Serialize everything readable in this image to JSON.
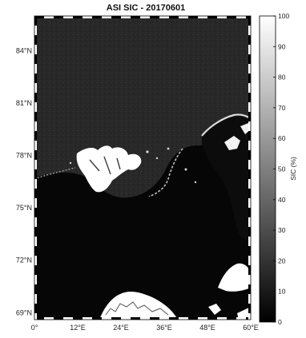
{
  "title": "ASI SIC - 20170601",
  "map": {
    "lat_labels": [
      {
        "value": 84,
        "text": "84°N"
      },
      {
        "value": 81,
        "text": "81°N"
      },
      {
        "value": 78,
        "text": "78°N"
      },
      {
        "value": 75,
        "text": "75°N"
      },
      {
        "value": 72,
        "text": "72°N"
      },
      {
        "value": 69,
        "text": "69°N"
      }
    ],
    "lon_labels": [
      {
        "value": 0,
        "text": "0°"
      },
      {
        "value": 12,
        "text": "12°E"
      },
      {
        "value": 24,
        "text": "24°E"
      },
      {
        "value": 36,
        "text": "36°E"
      },
      {
        "value": 48,
        "text": "48°E"
      },
      {
        "value": 60,
        "text": "60°E"
      }
    ],
    "colors": {
      "ocean": "#050505",
      "ice": "#2b2b2b",
      "land": "#ffffff",
      "frame_dark": "#000000",
      "frame_light": "#ffffff"
    }
  },
  "colorbar": {
    "label": "SIC (%)",
    "ticks": [
      0,
      10,
      20,
      30,
      40,
      50,
      60,
      70,
      80,
      90,
      100
    ],
    "range": [
      0,
      100
    ],
    "colormap": "grayscale"
  }
}
